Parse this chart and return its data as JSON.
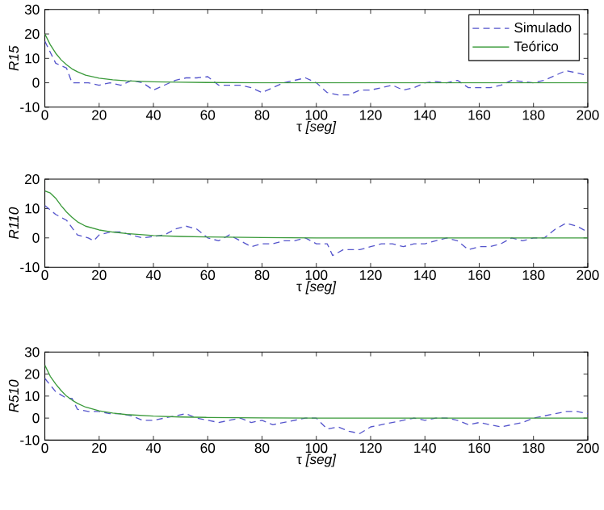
{
  "chart_data": [
    {
      "type": "line",
      "ylabel": "R15",
      "xlabel": "τ *[seg]*",
      "xlim": [
        0,
        200
      ],
      "ylim": [
        -10,
        30
      ],
      "xticks": [
        0,
        20,
        40,
        60,
        80,
        100,
        120,
        140,
        160,
        180,
        200
      ],
      "yticks": [
        -10,
        0,
        10,
        20,
        30
      ],
      "legend": "top right",
      "series": [
        {
          "name": "Simulado",
          "color": "#5555cc",
          "line_style": "dashed",
          "x": [
            0,
            4,
            8,
            10,
            12,
            16,
            20,
            24,
            28,
            32,
            36,
            40,
            44,
            48,
            52,
            56,
            60,
            64,
            68,
            72,
            76,
            80,
            84,
            88,
            92,
            96,
            100,
            104,
            108,
            112,
            116,
            120,
            124,
            128,
            132,
            136,
            140,
            144,
            148,
            152,
            156,
            160,
            164,
            168,
            172,
            176,
            180,
            184,
            188,
            192,
            196,
            200
          ],
          "values": [
            17,
            8,
            6,
            0,
            0,
            0,
            -1,
            0,
            -1,
            1,
            0,
            -3,
            -1,
            1,
            2,
            2,
            2.5,
            -1,
            -1,
            -1,
            -2,
            -4,
            -2,
            0,
            1,
            2,
            0,
            -4,
            -5,
            -5,
            -3,
            -3,
            -2,
            -1,
            -3,
            -2,
            0,
            0.5,
            0,
            1,
            -2,
            -2,
            -2,
            -1,
            1,
            0.5,
            0,
            1,
            3,
            5,
            4,
            3
          ]
        },
        {
          "name": "Teórico",
          "color": "#3a9a3a",
          "line_style": "solid",
          "x": [
            0,
            2,
            4,
            6,
            8,
            10,
            12,
            15,
            20,
            25,
            30,
            40,
            50,
            60,
            80,
            100,
            200
          ],
          "values": [
            20,
            15.6,
            12.1,
            9.4,
            7.4,
            5.7,
            4.5,
            3.1,
            1.9,
            1.2,
            0.8,
            0.4,
            0.2,
            0.1,
            0,
            0,
            0
          ]
        }
      ]
    },
    {
      "type": "line",
      "ylabel": "R110",
      "xlabel": "τ *[seg]*",
      "xlim": [
        0,
        200
      ],
      "ylim": [
        -10,
        20
      ],
      "xticks": [
        0,
        20,
        40,
        60,
        80,
        100,
        120,
        140,
        160,
        180,
        200
      ],
      "yticks": [
        -10,
        0,
        10,
        20
      ],
      "series": [
        {
          "color": "#5555cc",
          "line_style": "dashed",
          "x": [
            0,
            4,
            8,
            12,
            16,
            18,
            20,
            24,
            28,
            32,
            36,
            40,
            44,
            48,
            52,
            56,
            60,
            64,
            68,
            72,
            76,
            80,
            84,
            88,
            92,
            96,
            100,
            104,
            106,
            110,
            116,
            120,
            124,
            128,
            132,
            136,
            140,
            144,
            148,
            152,
            156,
            160,
            164,
            168,
            172,
            176,
            180,
            184,
            188,
            192,
            196,
            200
          ],
          "values": [
            11,
            8,
            6,
            1,
            0,
            -1,
            1,
            2,
            2,
            1,
            0,
            0.5,
            1,
            3,
            4,
            3,
            0,
            -1,
            1,
            -1,
            -3,
            -2,
            -2,
            -1,
            -1,
            0,
            -2,
            -2,
            -6,
            -4,
            -4,
            -3,
            -2,
            -2,
            -3,
            -2,
            -2,
            -1,
            0,
            -1,
            -4,
            -3,
            -3,
            -2,
            0,
            -1,
            0,
            0,
            3,
            5,
            4,
            2
          ]
        },
        {
          "color": "#3a9a3a",
          "line_style": "solid",
          "x": [
            0,
            2,
            4,
            6,
            8,
            10,
            12,
            15,
            20,
            25,
            30,
            40,
            50,
            60,
            80,
            100,
            200
          ],
          "values": [
            16,
            15.3,
            13.5,
            11,
            8.8,
            7,
            5.5,
            4,
            2.7,
            2,
            1.5,
            0.8,
            0.5,
            0.3,
            0.1,
            0,
            0
          ]
        }
      ]
    },
    {
      "type": "line",
      "ylabel": "R510",
      "xlabel": "τ *[seg]*",
      "xlim": [
        0,
        200
      ],
      "ylim": [
        -10,
        30
      ],
      "xticks": [
        0,
        20,
        40,
        60,
        80,
        100,
        120,
        140,
        160,
        180,
        200
      ],
      "yticks": [
        -10,
        0,
        10,
        20,
        30
      ],
      "series": [
        {
          "color": "#5555cc",
          "line_style": "dashed",
          "x": [
            0,
            4,
            8,
            10,
            12,
            16,
            20,
            24,
            28,
            32,
            36,
            40,
            44,
            48,
            52,
            56,
            60,
            64,
            68,
            72,
            76,
            80,
            84,
            88,
            92,
            96,
            100,
            104,
            108,
            112,
            116,
            120,
            124,
            128,
            132,
            136,
            140,
            144,
            148,
            152,
            156,
            160,
            164,
            168,
            172,
            176,
            180,
            184,
            188,
            192,
            196,
            200
          ],
          "values": [
            18,
            12,
            9,
            9,
            4,
            3,
            3,
            2,
            2,
            1,
            -1,
            -1,
            0,
            1,
            2,
            0,
            -1,
            -2,
            -1,
            0,
            -2,
            -1,
            -3,
            -2,
            -1,
            0,
            0,
            -5,
            -4,
            -6,
            -7,
            -4,
            -3,
            -2,
            -1,
            0,
            -1,
            0,
            0,
            -1,
            -3,
            -2,
            -3,
            -4,
            -3,
            -2,
            0,
            1,
            2,
            3,
            3,
            2
          ]
        },
        {
          "color": "#3a9a3a",
          "line_style": "solid",
          "x": [
            0,
            2,
            4,
            6,
            8,
            10,
            12,
            15,
            20,
            25,
            30,
            40,
            50,
            60,
            80,
            100,
            200
          ],
          "values": [
            24,
            19,
            15.5,
            12.5,
            10,
            8.2,
            6.7,
            5,
            3.3,
            2.3,
            1.6,
            0.9,
            0.5,
            0.3,
            0.1,
            0,
            0
          ]
        }
      ]
    }
  ]
}
